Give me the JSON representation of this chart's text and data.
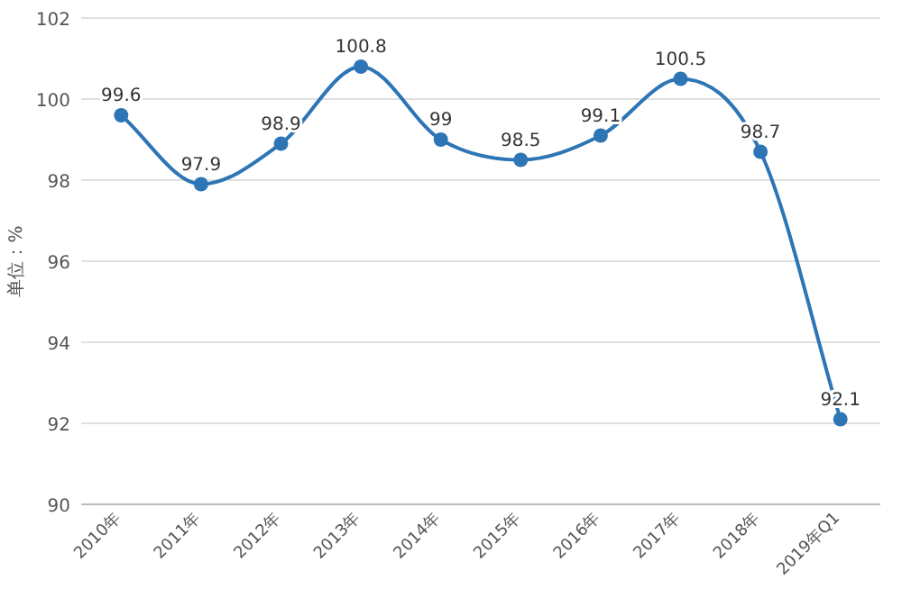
{
  "chart_data": {
    "type": "line",
    "ylabel": "单位：%",
    "categories": [
      "2010年",
      "2011年",
      "2012年",
      "2013年",
      "2014年",
      "2015年",
      "2016年",
      "2017年",
      "2018年",
      "2019年Q1"
    ],
    "series": [
      {
        "color": "#2e75b6",
        "values": [
          99.6,
          97.9,
          98.9,
          100.8,
          99,
          98.5,
          99.1,
          100.5,
          98.7,
          92.1
        ]
      }
    ],
    "ylim": [
      90,
      102
    ],
    "yticks": [
      90,
      92,
      94,
      96,
      98,
      100,
      102
    ],
    "grid": "y",
    "data_labels": true,
    "marker": "circle",
    "line_style": "solid"
  }
}
